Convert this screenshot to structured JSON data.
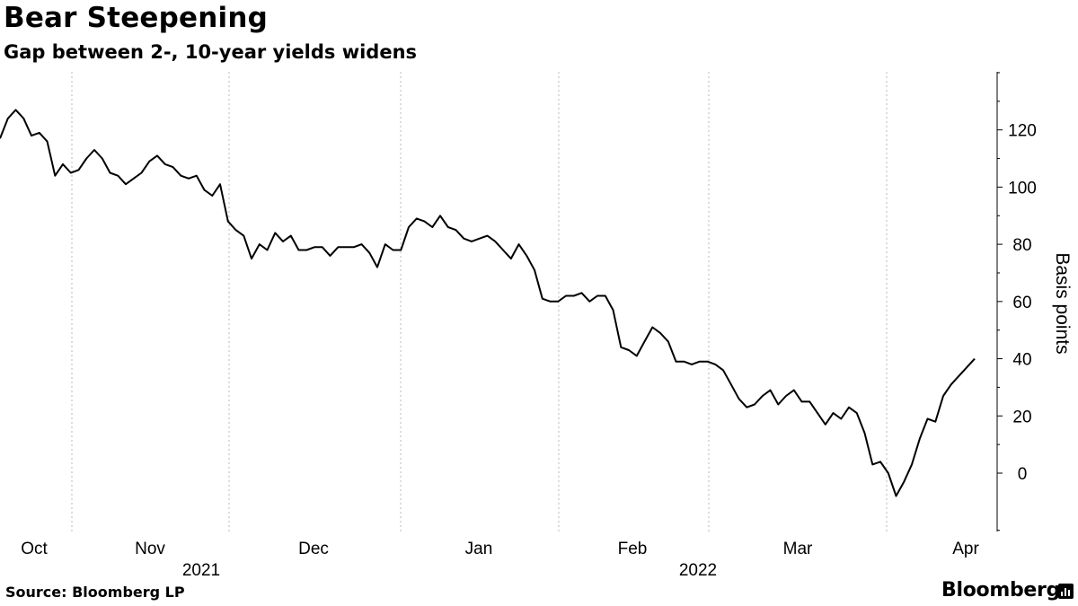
{
  "header": {
    "title": "Bear Steepening",
    "subtitle": "Gap between 2-, 10-year yields widens"
  },
  "footer": {
    "source": "Source: Bloomberg LP",
    "brand": "Bloomberg"
  },
  "chart_data": {
    "type": "line",
    "title": "Bear Steepening",
    "subtitle": "Gap between 2-, 10-year yields widens",
    "xlabel": "",
    "ylabel": "Basis points",
    "ylim": [
      -20,
      140
    ],
    "yticks": [
      0,
      20,
      40,
      60,
      80,
      100,
      120
    ],
    "y_axis_side": "right",
    "grid": "vertical dotted",
    "x_month_labels": [
      "Oct",
      "Nov",
      "Dec",
      "Jan",
      "Feb",
      "Mar",
      "Apr"
    ],
    "x_year_labels": [
      "2021",
      "2022"
    ],
    "series": [
      {
        "values": [
          117,
          124,
          127,
          124,
          118,
          119,
          116,
          104,
          108,
          105,
          106,
          110,
          113,
          110,
          105,
          104,
          101,
          103,
          105,
          109,
          111,
          108,
          107,
          104,
          103,
          104,
          99,
          97,
          101,
          88,
          85,
          83,
          75,
          80,
          78,
          84,
          81,
          83,
          78,
          78,
          79,
          79,
          76,
          79,
          79,
          79,
          80,
          77,
          72,
          80,
          78,
          78,
          86,
          89,
          88,
          86,
          90,
          86,
          85,
          82,
          81,
          82,
          83,
          81,
          78,
          75,
          80,
          76,
          71,
          61,
          60,
          60,
          62,
          62,
          63,
          60,
          62,
          62,
          57,
          44,
          43,
          41,
          46,
          51,
          49,
          46,
          39,
          39,
          38,
          39,
          39,
          38,
          36,
          31,
          26,
          23,
          24,
          27,
          29,
          24,
          27,
          29,
          25,
          25,
          21,
          17,
          21,
          19,
          23,
          21,
          14,
          3,
          4,
          0,
          -8,
          -3,
          3,
          12,
          19,
          18,
          27,
          31,
          34,
          37,
          40
        ]
      }
    ]
  }
}
